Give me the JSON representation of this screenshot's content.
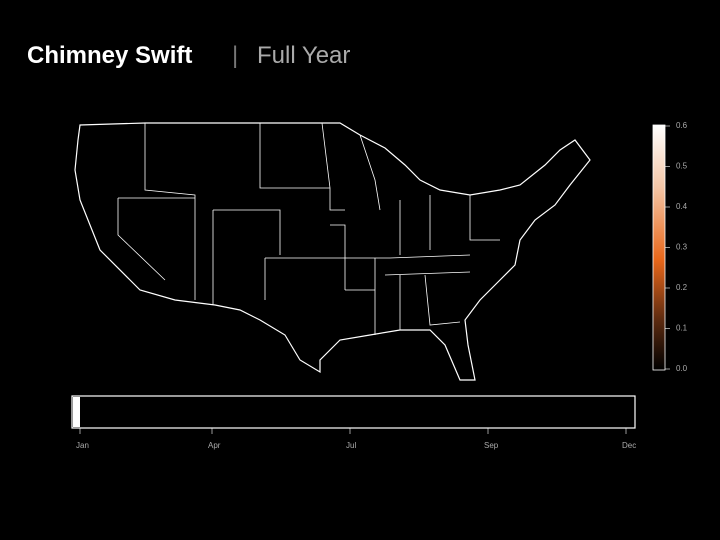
{
  "header": {
    "species": "Chimney Swift",
    "separator": "|",
    "period": "Full Year"
  },
  "colorbar": {
    "ticks": [
      "0.6",
      "0.5",
      "0.4",
      "0.3",
      "0.2",
      "0.1",
      "0.0"
    ]
  },
  "timeline": {
    "labels": [
      "Jan",
      "Apr",
      "Jul",
      "Sep",
      "Dec"
    ]
  }
}
